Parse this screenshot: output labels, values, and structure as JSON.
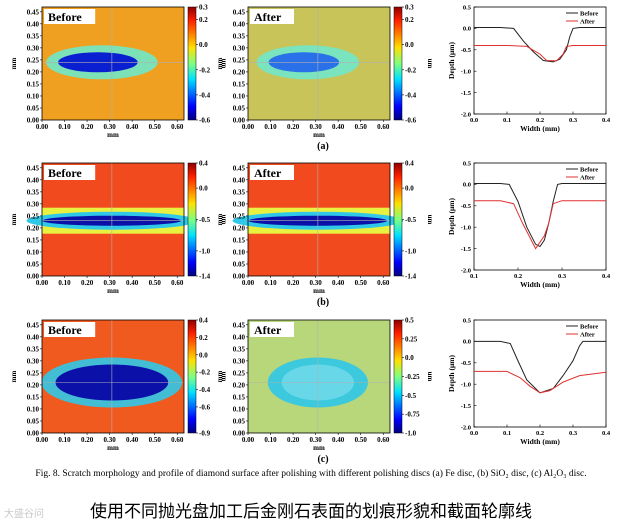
{
  "figure": {
    "rows": [
      {
        "label": "(a)",
        "maps": [
          {
            "title": "Before",
            "colorbar_ticks": [
              "0.3",
              "0.2",
              "0.0",
              "-0.2",
              "-0.4",
              "-0.6"
            ],
            "colorbar_unit": "um",
            "cb_min": -0.6,
            "cb_max": 0.3,
            "cb_tick_values": [
              0.3,
              0.2,
              0.0,
              -0.2,
              -0.4,
              -0.6
            ],
            "bg_color": "#f0a020",
            "scratch_color": "#0a1fd0",
            "scratch_shape": "wedge",
            "scratch_rx": 0.15
          },
          {
            "title": "After",
            "colorbar_ticks": [
              "0.3",
              "0.2",
              "0.0",
              "-0.2",
              "-0.4",
              "-0.6"
            ],
            "colorbar_unit": "um",
            "cb_min": -0.6,
            "cb_max": 0.3,
            "cb_tick_values": [
              0.3,
              0.2,
              0.0,
              -0.2,
              -0.4,
              -0.6
            ],
            "bg_color": "#c8c45a",
            "scratch_color": "#2a70e8",
            "scratch_shape": "wedge",
            "scratch_rx": 0.13
          }
        ],
        "profile": {
          "xlabel": "Width (mm)",
          "ylabel": "Depth (μm)",
          "x_ticks": [
            "0.0",
            "0.1",
            "0.2",
            "0.3",
            "0.4"
          ],
          "y_ticks": [
            "0.5",
            "0.0",
            "-0.5",
            "-1.0",
            "-1.5",
            "-2.0"
          ],
          "xlim": [
            0.0,
            0.4
          ],
          "ylim": [
            -2.0,
            0.5
          ],
          "series": [
            {
              "name": "Before",
              "color": "#222222",
              "x": [
                0.0,
                0.08,
                0.12,
                0.15,
                0.18,
                0.21,
                0.24,
                0.26,
                0.28,
                0.29,
                0.3,
                0.32,
                0.4
              ],
              "y": [
                0.02,
                0.02,
                0.0,
                -0.3,
                -0.55,
                -0.75,
                -0.78,
                -0.72,
                -0.5,
                -0.2,
                0.0,
                0.02,
                0.02
              ]
            },
            {
              "name": "After",
              "color": "#e03030",
              "x": [
                0.0,
                0.1,
                0.16,
                0.2,
                0.22,
                0.25,
                0.27,
                0.28,
                0.3,
                0.4
              ],
              "y": [
                -0.4,
                -0.4,
                -0.42,
                -0.6,
                -0.75,
                -0.76,
                -0.6,
                -0.42,
                -0.4,
                -0.4
              ]
            }
          ]
        }
      },
      {
        "label": "(b)",
        "maps": [
          {
            "title": "Before",
            "colorbar_ticks": [
              "0.4",
              "0.0",
              "-0.5",
              "-1.0",
              "-1.4"
            ],
            "colorbar_unit": "um",
            "cb_min": -1.4,
            "cb_max": 0.4,
            "cb_tick_values": [
              0.4,
              0.0,
              -0.5,
              -1.0,
              -1.4
            ],
            "bg_color": "#f04a1e",
            "scratch_color": "#0a10a8",
            "scratch_shape": "band",
            "scratch_rx": 0.29
          },
          {
            "title": "After",
            "colorbar_ticks": [
              "0.4",
              "0.0",
              "-0.5",
              "-1.0",
              "-1.4"
            ],
            "colorbar_unit": "um",
            "cb_min": -1.4,
            "cb_max": 0.4,
            "cb_tick_values": [
              0.4,
              0.0,
              -0.5,
              -1.0,
              -1.4
            ],
            "bg_color": "#f04a1e",
            "scratch_color": "#0a10a8",
            "scratch_shape": "band",
            "scratch_rx": 0.29
          }
        ],
        "profile": {
          "xlabel": "Width (mm)",
          "ylabel": "Depth (μm)",
          "x_ticks": [
            "0.1",
            "0.2",
            "0.3",
            "0.4"
          ],
          "y_ticks": [
            "0.5",
            "0.0",
            "-0.5",
            "-1.0",
            "-1.5",
            "-2.0"
          ],
          "xlim": [
            0.1,
            0.4
          ],
          "ylim": [
            -2.0,
            0.5
          ],
          "series": [
            {
              "name": "Before",
              "color": "#222222",
              "x": [
                0.1,
                0.16,
                0.18,
                0.2,
                0.22,
                0.24,
                0.25,
                0.26,
                0.27,
                0.28,
                0.29,
                0.3,
                0.4
              ],
              "y": [
                0.02,
                0.02,
                0.0,
                -0.4,
                -1.0,
                -1.4,
                -1.45,
                -1.3,
                -0.9,
                -0.4,
                0.0,
                0.02,
                0.02
              ]
            },
            {
              "name": "After",
              "color": "#e03030",
              "x": [
                0.1,
                0.16,
                0.19,
                0.21,
                0.23,
                0.24,
                0.25,
                0.26,
                0.27,
                0.28,
                0.3,
                0.4
              ],
              "y": [
                -0.38,
                -0.38,
                -0.45,
                -0.9,
                -1.3,
                -1.5,
                -1.35,
                -1.2,
                -0.9,
                -0.45,
                -0.38,
                -0.38
              ]
            }
          ]
        }
      },
      {
        "label": "(c)",
        "maps": [
          {
            "title": "Before",
            "colorbar_ticks": [
              "0.4",
              "0.2",
              "0.0",
              "-0.2",
              "-0.4",
              "-0.6",
              "-0.9"
            ],
            "colorbar_unit": "um",
            "cb_min": -0.9,
            "cb_max": 0.4,
            "cb_tick_values": [
              0.4,
              0.2,
              0.0,
              -0.2,
              -0.4,
              -0.6,
              -0.9
            ],
            "bg_color": "#f05a1e",
            "scratch_color": "#0a10a8",
            "scratch_shape": "oval",
            "scratch_rx": 0.25
          },
          {
            "title": "After",
            "colorbar_ticks": [
              "0.5",
              "0.25",
              "0.0",
              "-0.25",
              "-0.5",
              "-0.75",
              "-1.0"
            ],
            "colorbar_unit": "um",
            "cb_min": -1.0,
            "cb_max": 0.5,
            "cb_tick_values": [
              0.5,
              0.25,
              0.0,
              -0.25,
              -0.5,
              -0.75,
              -1.0
            ],
            "bg_color": "#b8d67a",
            "scratch_color": "#68d8e8",
            "scratch_shape": "oval",
            "scratch_rx": 0.16
          }
        ],
        "profile": {
          "xlabel": "Width (mm)",
          "ylabel": "Depth (μm)",
          "x_ticks": [
            "0.0",
            "0.1",
            "0.2",
            "0.3",
            "0.4"
          ],
          "y_ticks": [
            "0.5",
            "0.0",
            "-0.5",
            "-1.0",
            "-1.5",
            "-2.0"
          ],
          "xlim": [
            0.0,
            0.4
          ],
          "ylim": [
            -2.0,
            0.5
          ],
          "series": [
            {
              "name": "Before",
              "color": "#222222",
              "x": [
                0.0,
                0.08,
                0.11,
                0.13,
                0.16,
                0.2,
                0.24,
                0.27,
                0.3,
                0.32,
                0.33,
                0.35,
                0.4
              ],
              "y": [
                0.0,
                0.0,
                -0.05,
                -0.4,
                -0.9,
                -1.2,
                -1.1,
                -0.8,
                -0.45,
                -0.1,
                0.0,
                0.0,
                0.0
              ]
            },
            {
              "name": "After",
              "color": "#e03030",
              "x": [
                0.0,
                0.1,
                0.14,
                0.17,
                0.2,
                0.23,
                0.27,
                0.32,
                0.4
              ],
              "y": [
                -0.7,
                -0.7,
                -0.85,
                -1.05,
                -1.2,
                -1.15,
                -0.95,
                -0.8,
                -0.72
              ]
            }
          ]
        }
      }
    ],
    "map_axes": {
      "xlabel": "mm",
      "ylabel": "mm",
      "x_ticks": [
        "0.00",
        "0.10",
        "0.20",
        "0.30",
        "0.40",
        "0.50",
        "0.60"
      ],
      "y_ticks": [
        "0.45",
        "0.40",
        "0.35",
        "0.30",
        "0.25",
        "0.20",
        "0.15",
        "0.10",
        "0.05",
        "0.00"
      ],
      "xlim": [
        0.0,
        0.63
      ],
      "ylim": [
        0.0,
        0.47
      ]
    },
    "caption": "Fig. 8.  Scratch morphology and profile of diamond surface after polishing with different polishing discs (a) Fe disc, (b) SiO₂ disc, (c) Al₂O₃ disc.",
    "cn_caption": "使用不同抛光盘加工后金刚石表面的划痕形貌和截面轮廓线",
    "watermark": "大盛谷问"
  }
}
